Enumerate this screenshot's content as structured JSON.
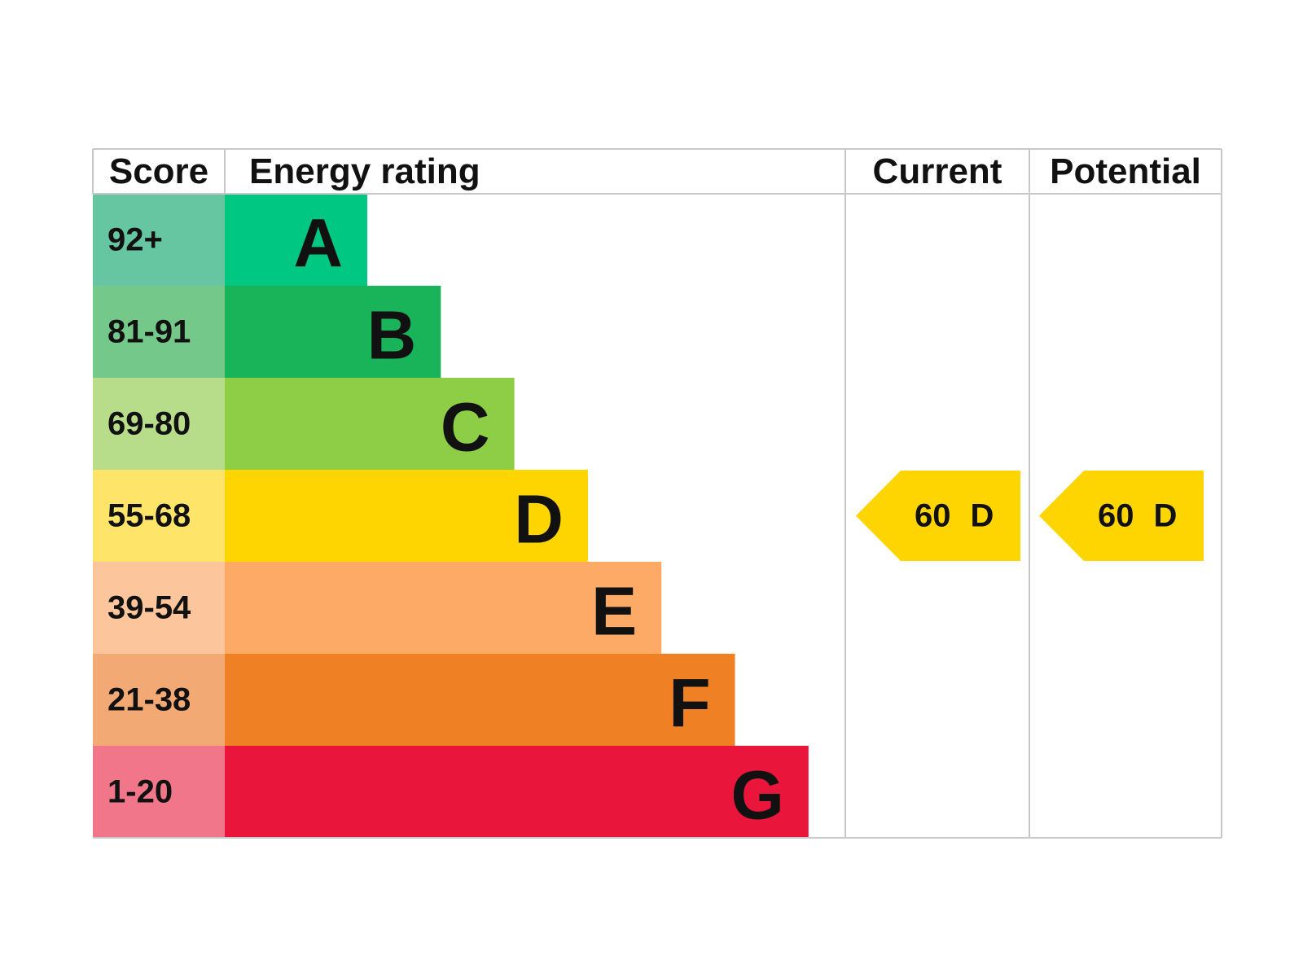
{
  "header": {
    "score": "Score",
    "rating": "Energy rating",
    "current": "Current",
    "potential": "Potential"
  },
  "rows": [
    {
      "score": "92+",
      "band": "A",
      "score_color": "#66c6a2",
      "band_color": "#00c781"
    },
    {
      "score": "81-91",
      "band": "B",
      "score_color": "#74c98a",
      "band_color": "#19b459"
    },
    {
      "score": "69-80",
      "band": "C",
      "score_color": "#b8dd8a",
      "band_color": "#8dce46"
    },
    {
      "score": "55-68",
      "band": "D",
      "score_color": "#fee569",
      "band_color": "#ffd500"
    },
    {
      "score": "39-54",
      "band": "E",
      "score_color": "#fcc59b",
      "band_color": "#fcaa65"
    },
    {
      "score": "21-38",
      "band": "F",
      "score_color": "#f3a974",
      "band_color": "#ef8023"
    },
    {
      "score": "1-20",
      "band": "G",
      "score_color": "#f2768a",
      "band_color": "#e9153b"
    }
  ],
  "current": {
    "score": "60",
    "band": "D"
  },
  "potential": {
    "score": "60",
    "band": "D"
  }
}
